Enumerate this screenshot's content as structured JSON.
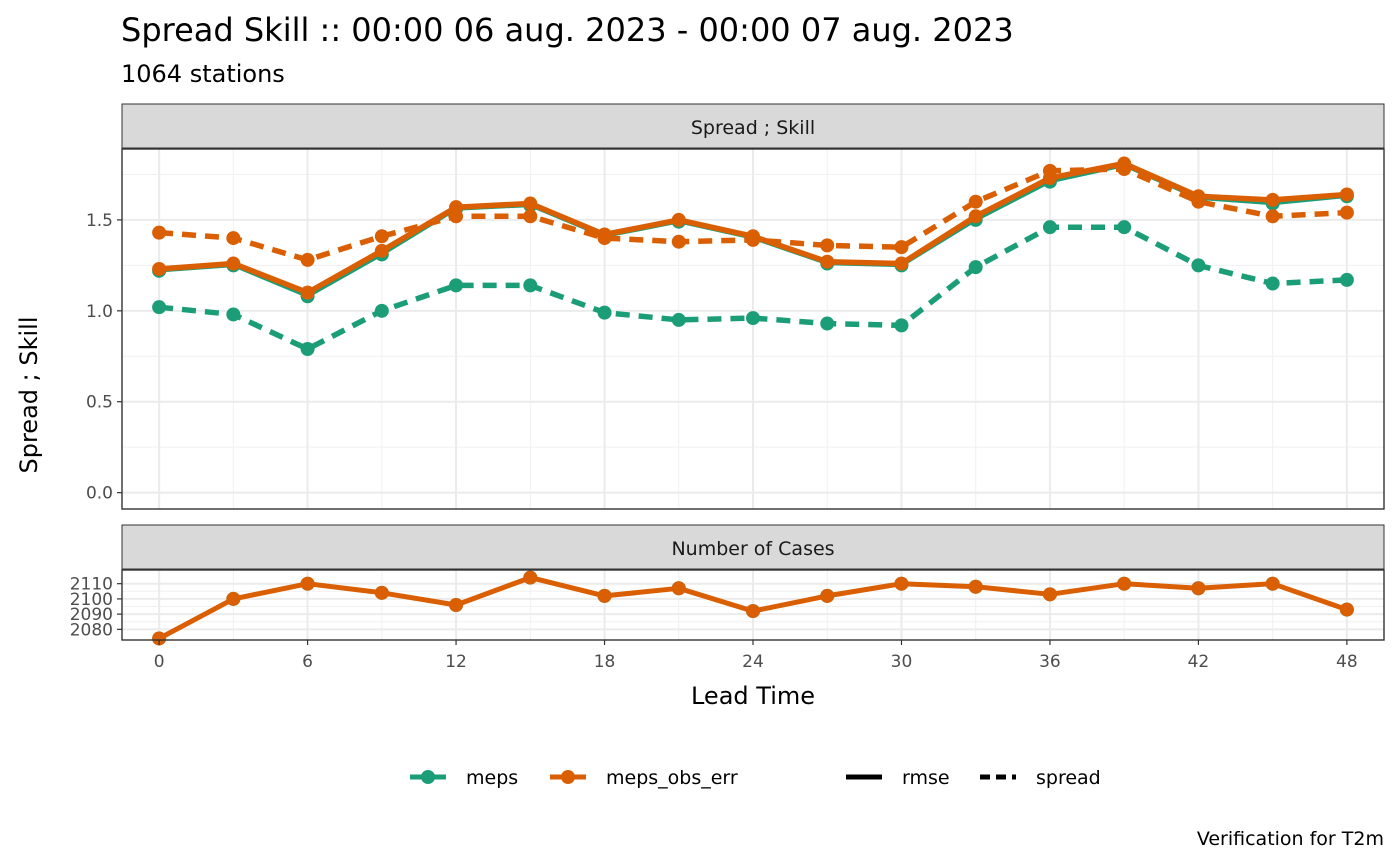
{
  "title": "Spread Skill :: 00:00 06 aug. 2023 - 00:00 07 aug. 2023",
  "subtitle": "1064 stations",
  "caption": "Verification for T2m",
  "chart_data": [
    {
      "type": "line",
      "panel_label": "Spread ; Skill",
      "xlabel": "Lead Time",
      "ylabel": "Spread ; Skill",
      "xlim": [
        -1.5,
        49.5
      ],
      "ylim": [
        -0.09,
        1.89
      ],
      "x_ticks": [
        0,
        6,
        12,
        18,
        24,
        30,
        36,
        42,
        48
      ],
      "y_ticks": [
        0.0,
        0.5,
        1.0,
        1.5
      ],
      "y_tick_labels": [
        "0.0",
        "0.5",
        "1.0",
        "1.5"
      ],
      "grid": true,
      "x": [
        0,
        3,
        6,
        9,
        12,
        15,
        18,
        21,
        24,
        27,
        30,
        33,
        36,
        39,
        42,
        45,
        48
      ],
      "series": [
        {
          "model": "meps",
          "stat": "rmse",
          "color": "#1B9E77",
          "dash": "solid",
          "values": [
            1.22,
            1.25,
            1.08,
            1.31,
            1.56,
            1.58,
            1.41,
            1.49,
            1.4,
            1.26,
            1.25,
            1.5,
            1.71,
            1.8,
            1.62,
            1.59,
            1.63
          ]
        },
        {
          "model": "meps",
          "stat": "spread",
          "color": "#1B9E77",
          "dash": "dashed",
          "values": [
            1.02,
            0.98,
            0.79,
            1.0,
            1.14,
            1.14,
            0.99,
            0.95,
            0.96,
            0.93,
            0.92,
            1.24,
            1.46,
            1.46,
            1.25,
            1.15,
            1.17
          ]
        },
        {
          "model": "meps_obs_err",
          "stat": "rmse",
          "color": "#D95F02",
          "dash": "solid",
          "values": [
            1.23,
            1.26,
            1.1,
            1.33,
            1.57,
            1.59,
            1.42,
            1.5,
            1.41,
            1.27,
            1.26,
            1.52,
            1.73,
            1.81,
            1.63,
            1.61,
            1.64
          ]
        },
        {
          "model": "meps_obs_err",
          "stat": "spread",
          "color": "#D95F02",
          "dash": "dashed",
          "values": [
            1.43,
            1.4,
            1.28,
            1.41,
            1.52,
            1.52,
            1.4,
            1.38,
            1.39,
            1.36,
            1.35,
            1.6,
            1.77,
            1.78,
            1.6,
            1.52,
            1.54
          ]
        }
      ]
    },
    {
      "type": "line",
      "panel_label": "Number of Cases",
      "xlabel": "Lead Time",
      "xlim": [
        -1.5,
        49.5
      ],
      "ylim": [
        2073,
        2119
      ],
      "y_ticks": [
        2080,
        2090,
        2100,
        2110
      ],
      "y_tick_labels": [
        "2080",
        "2090",
        "2100",
        "2110"
      ],
      "grid": true,
      "x": [
        0,
        3,
        6,
        9,
        12,
        15,
        18,
        21,
        24,
        27,
        30,
        33,
        36,
        39,
        42,
        45,
        48
      ],
      "series": [
        {
          "model": "meps",
          "color": "#1B9E77",
          "values": [
            2074,
            2100,
            2110,
            2104,
            2096,
            2114,
            2102,
            2107,
            2092,
            2102,
            2110,
            2108,
            2103,
            2110,
            2107,
            2110,
            2093
          ]
        },
        {
          "model": "meps_obs_err",
          "color": "#D95F02",
          "values": [
            2074,
            2100,
            2110,
            2104,
            2096,
            2114,
            2102,
            2107,
            2092,
            2102,
            2110,
            2108,
            2103,
            2110,
            2107,
            2110,
            2093
          ]
        }
      ]
    }
  ],
  "legend": {
    "models": [
      {
        "label": "meps",
        "color": "#1B9E77"
      },
      {
        "label": "meps_obs_err",
        "color": "#D95F02"
      }
    ],
    "stats": [
      {
        "label": "rmse",
        "dash": "solid"
      },
      {
        "label": "spread",
        "dash": "dashed"
      }
    ]
  }
}
